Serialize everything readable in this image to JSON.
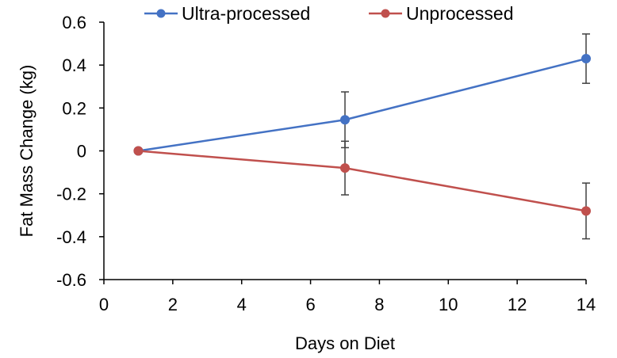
{
  "chart_data": {
    "type": "line",
    "title": "",
    "xlabel": "Days on Diet",
    "ylabel": "Fat Mass Change (kg)",
    "xlim": [
      0,
      14
    ],
    "ylim": [
      -0.6,
      0.6
    ],
    "xticks": [
      0,
      2,
      4,
      6,
      8,
      10,
      12,
      14
    ],
    "yticks": [
      -0.6,
      -0.4,
      -0.2,
      0,
      0.2,
      0.4,
      0.6
    ],
    "xtick_labels": [
      "0",
      "2",
      "4",
      "6",
      "8",
      "10",
      "12",
      "14"
    ],
    "ytick_labels": [
      "-0.6",
      "-0.4",
      "-0.2",
      "0",
      "0.2",
      "0.4",
      "0.6"
    ],
    "grid": false,
    "legend_position": "top",
    "series": [
      {
        "name": "Ultra-processed",
        "color": "#4472C4",
        "points": [
          {
            "x": 1,
            "y": 0,
            "err": 0
          },
          {
            "x": 7,
            "y": 0.145,
            "err": 0.13
          },
          {
            "x": 14,
            "y": 0.43,
            "err": 0.115
          }
        ]
      },
      {
        "name": "Unprocessed",
        "color": "#C0504D",
        "points": [
          {
            "x": 1,
            "y": 0,
            "err": 0
          },
          {
            "x": 7,
            "y": -0.08,
            "err": 0.125
          },
          {
            "x": 14,
            "y": -0.28,
            "err": 0.13
          }
        ]
      }
    ]
  }
}
